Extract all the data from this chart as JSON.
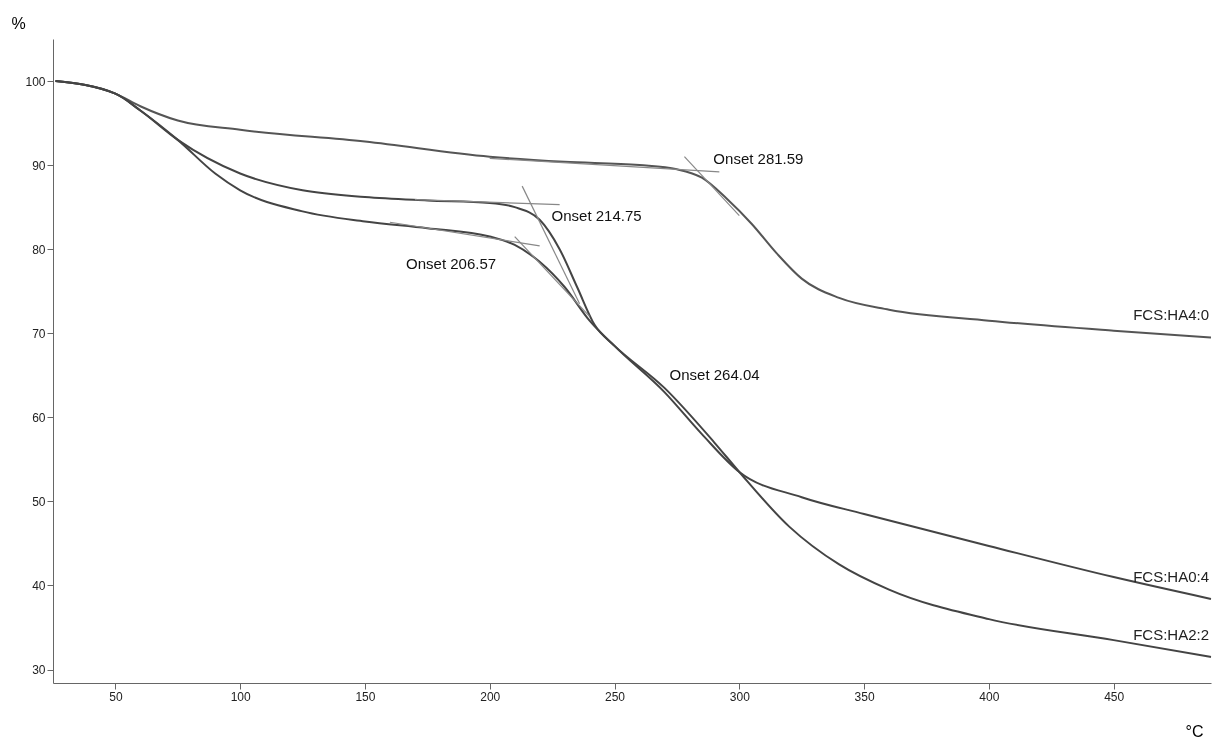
{
  "chart_data": {
    "type": "line",
    "xlabel": "°C",
    "ylabel": "%",
    "xlim": [
      25,
      489
    ],
    "ylim": [
      28.4,
      105
    ],
    "xticks": [
      50,
      100,
      150,
      200,
      250,
      300,
      350,
      400,
      450
    ],
    "yticks": [
      30,
      40,
      50,
      60,
      70,
      80,
      90,
      100
    ],
    "grid": false,
    "marker": "none",
    "line_style": "solid",
    "series": [
      {
        "name": "FCS:HA4:0",
        "color": "#555555",
        "x": [
          26,
          50,
          60,
          75,
          100,
          150,
          200,
          230,
          260,
          275,
          285,
          295,
          305,
          315,
          325,
          340,
          360,
          400,
          450,
          489
        ],
        "values": [
          100,
          98.5,
          97,
          95.3,
          94.2,
          92.8,
          91,
          90.4,
          90,
          89.5,
          88.5,
          86,
          83,
          79.5,
          76.5,
          74.2,
          72.8,
          71.5,
          70.3,
          69.5
        ]
      },
      {
        "name": "FCS:HA0:4",
        "color": "#444444",
        "x": [
          26,
          50,
          60,
          75,
          100,
          125,
          150,
          175,
          200,
          210,
          220,
          228,
          235,
          242,
          250,
          270,
          285,
          300,
          325,
          350,
          400,
          450,
          489
        ],
        "values": [
          100,
          98.5,
          96.5,
          93,
          89,
          87,
          86.2,
          85.8,
          85.5,
          85,
          83.5,
          80,
          75.5,
          71,
          68.5,
          63,
          58,
          53.5,
          50.5,
          48.5,
          44.7,
          41,
          38.4
        ]
      },
      {
        "name": "FCS:HA2:2",
        "color": "#444444",
        "x": [
          26,
          50,
          60,
          75,
          90,
          100,
          125,
          150,
          175,
          200,
          210,
          220,
          230,
          240,
          250,
          270,
          290,
          300,
          320,
          340,
          360,
          400,
          450,
          489
        ],
        "values": [
          100,
          98.5,
          96.5,
          93,
          89,
          87,
          84.5,
          83.3,
          82.5,
          81.5,
          80.5,
          78.5,
          75.5,
          71.5,
          68.5,
          63.5,
          57,
          53.5,
          47,
          42.5,
          39.5,
          36,
          33.5,
          31.5
        ]
      },
      {
        "color": "#888888",
        "x": [
          200,
          292
        ],
        "values": [
          90.8,
          89.2
        ]
      },
      {
        "color": "#888888",
        "x": [
          278,
          300
        ],
        "values": [
          91,
          84
        ]
      },
      {
        "color": "#888888",
        "x": [
          170,
          228
        ],
        "values": [
          85.9,
          85.3
        ]
      },
      {
        "color": "#888888",
        "x": [
          213,
          236
        ],
        "values": [
          87.5,
          73.5
        ]
      },
      {
        "color": "#888888",
        "x": [
          160,
          220
        ],
        "values": [
          83.2,
          80.4
        ]
      },
      {
        "color": "#888888",
        "x": [
          210,
          240
        ],
        "values": [
          81.5,
          72
        ]
      }
    ],
    "annotations": [
      {
        "text": "Onset 281.59",
        "x": 281.59,
        "y": 89.3
      },
      {
        "text": "Onset 214.75",
        "x": 214.75,
        "y": 85.4
      },
      {
        "text": "Onset 206.57",
        "x": 206.57,
        "y": 80.6
      },
      {
        "text": "Onset 264.04",
        "x": 264.04,
        "y": 64.5
      }
    ]
  }
}
